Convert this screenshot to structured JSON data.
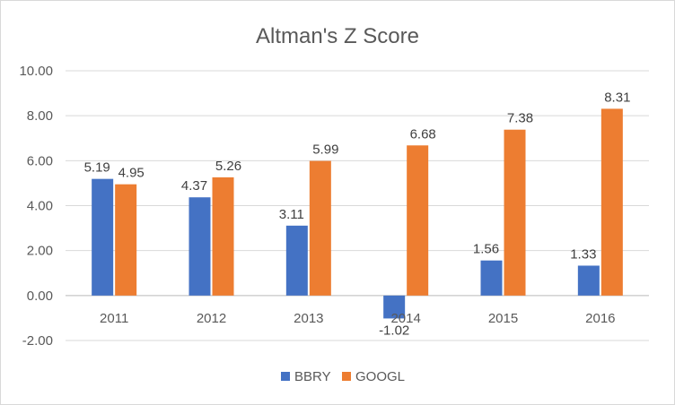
{
  "chart_data": {
    "type": "bar",
    "title": "Altman's Z Score",
    "categories": [
      "2011",
      "2012",
      "2013",
      "2014",
      "2015",
      "2016"
    ],
    "series": [
      {
        "name": "BBRY",
        "color": "#4472C4",
        "values": [
          5.19,
          4.37,
          3.11,
          -1.02,
          1.56,
          1.33
        ]
      },
      {
        "name": "GOOGL",
        "color": "#ED7D31",
        "values": [
          4.95,
          5.26,
          5.99,
          6.68,
          7.38,
          8.31
        ]
      }
    ],
    "ylim": [
      -2,
      10
    ],
    "yticks": [
      "-2.00",
      "0.00",
      "2.00",
      "4.00",
      "6.00",
      "8.00",
      "10.00"
    ],
    "grid": true,
    "legend_position": "bottom"
  }
}
